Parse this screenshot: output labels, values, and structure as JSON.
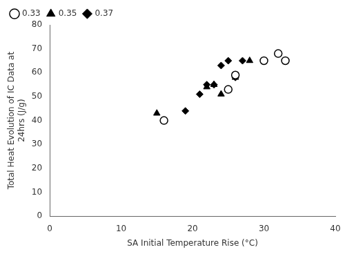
{
  "chart_data": {
    "type": "scatter",
    "xlabel": "SA Initial Temperature Rise (°C)",
    "ylabel": "Total Heat Evolution of IC Data at\n24hrs (J/g)",
    "xlim": [
      0,
      40
    ],
    "ylim": [
      0,
      80
    ],
    "xticks": [
      0,
      10,
      20,
      30,
      40
    ],
    "yticks": [
      0,
      10,
      20,
      30,
      40,
      50,
      60,
      70,
      80
    ],
    "grid": false,
    "legend": "upper left",
    "series": [
      {
        "name": "0.33",
        "color": "black",
        "marker": "circle_open",
        "x": [
          16,
          25,
          26,
          30,
          32,
          33
        ],
        "values": [
          40,
          53,
          59,
          65,
          68,
          65
        ]
      },
      {
        "name": "0.35",
        "color": "black",
        "marker": "triangle",
        "x": [
          15,
          22,
          23,
          24,
          25,
          26,
          28,
          33
        ],
        "values": [
          43,
          54,
          55,
          51,
          53,
          58,
          65,
          65
        ]
      },
      {
        "name": "0.37",
        "color": "black",
        "marker": "diamond",
        "x": [
          19,
          21,
          22,
          23,
          24,
          25,
          26,
          27
        ],
        "values": [
          44,
          51,
          55,
          55,
          63,
          65,
          58,
          65
        ]
      }
    ]
  }
}
